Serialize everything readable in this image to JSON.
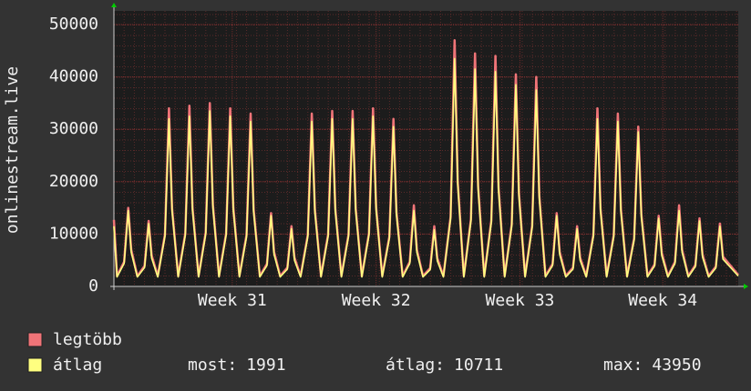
{
  "chart_data": {
    "type": "line",
    "y_label": "onlinestream.live",
    "xlim": [
      0,
      30.6
    ],
    "xticks": [
      {
        "value": 5.8,
        "label": "Week 31"
      },
      {
        "value": 12.85,
        "label": "Week 32"
      },
      {
        "value": 19.9,
        "label": "Week 33"
      },
      {
        "value": 26.9,
        "label": "Week 34"
      }
    ],
    "ylim": [
      0,
      52600
    ],
    "yticks": [
      0,
      10000,
      20000,
      30000,
      40000,
      50000
    ],
    "grid": true,
    "x": [
      0,
      0.15,
      0.5,
      0.7,
      0.85,
      1.15,
      1.5,
      1.7,
      1.85,
      2.15,
      2.5,
      2.7,
      2.85,
      3.15,
      3.5,
      3.7,
      3.85,
      4.15,
      4.5,
      4.7,
      4.85,
      5.15,
      5.5,
      5.7,
      5.85,
      6.15,
      6.5,
      6.7,
      6.85,
      7.15,
      7.5,
      7.7,
      7.85,
      8.15,
      8.5,
      8.7,
      8.85,
      9.15,
      9.5,
      9.7,
      9.85,
      10.15,
      10.5,
      10.7,
      10.85,
      11.15,
      11.5,
      11.7,
      11.85,
      12.15,
      12.5,
      12.7,
      12.85,
      13.15,
      13.5,
      13.7,
      13.85,
      14.15,
      14.5,
      14.7,
      14.85,
      15.15,
      15.5,
      15.7,
      15.85,
      16.15,
      16.5,
      16.7,
      16.85,
      17.15,
      17.5,
      17.7,
      17.85,
      18.15,
      18.5,
      18.7,
      18.85,
      19.15,
      19.5,
      19.7,
      19.85,
      20.15,
      20.5,
      20.7,
      20.85,
      21.15,
      21.5,
      21.7,
      21.85,
      22.15,
      22.5,
      22.7,
      22.85,
      23.15,
      23.5,
      23.7,
      23.85,
      24.15,
      24.5,
      24.7,
      24.85,
      25.15,
      25.5,
      25.7,
      25.85,
      26.15,
      26.5,
      26.7,
      26.85,
      27.15,
      27.5,
      27.7,
      27.85,
      28.15,
      28.5,
      28.7,
      28.85,
      29.15,
      29.5,
      29.7,
      29.85,
      30.6
    ],
    "series": [
      {
        "name": "legtöbb",
        "color": "#f07478",
        "values": [
          12700,
          2000,
          4700,
          15000,
          7000,
          2000,
          3900,
          12500,
          5900,
          2000,
          9900,
          34000,
          14900,
          2000,
          10100,
          34500,
          15100,
          2000,
          10300,
          35000,
          15600,
          2000,
          10100,
          34000,
          15100,
          2000,
          9800,
          33000,
          14700,
          2000,
          4300,
          14000,
          6600,
          2000,
          3600,
          11500,
          5500,
          2000,
          9800,
          33000,
          14700,
          2000,
          9900,
          33500,
          14900,
          2000,
          9900,
          33500,
          14900,
          2000,
          10100,
          34000,
          15100,
          2000,
          9500,
          32000,
          14200,
          2000,
          4700,
          15500,
          7000,
          2000,
          3500,
          11500,
          5400,
          2000,
          13300,
          47000,
          20100,
          2000,
          12800,
          44500,
          19200,
          2000,
          12600,
          44000,
          19000,
          2000,
          11900,
          40500,
          17800,
          2000,
          11600,
          40000,
          17400,
          2000,
          4300,
          14000,
          6600,
          2000,
          3600,
          11500,
          5500,
          2000,
          9900,
          34000,
          14900,
          2000,
          9800,
          33000,
          14700,
          2000,
          9200,
          30500,
          13800,
          2000,
          4200,
          13500,
          6400,
          2000,
          4700,
          15500,
          7000,
          2000,
          4100,
          13000,
          6100,
          2000,
          3800,
          12000,
          5700,
          2200
        ]
      },
      {
        "name": "átlag",
        "color": "#ffff80",
        "values": [
          11500,
          1800,
          4400,
          14500,
          6500,
          1800,
          3600,
          12000,
          5400,
          1800,
          9600,
          32000,
          14400,
          1800,
          9800,
          32500,
          14600,
          1800,
          10000,
          33500,
          15100,
          1800,
          9800,
          32500,
          14600,
          1800,
          9500,
          31500,
          14200,
          1800,
          4000,
          13500,
          6100,
          1800,
          3300,
          11000,
          5000,
          1800,
          9500,
          31500,
          14200,
          1800,
          9600,
          32000,
          14400,
          1800,
          9600,
          32000,
          14400,
          1800,
          9800,
          32500,
          14600,
          1800,
          9200,
          30500,
          13700,
          1800,
          4400,
          14500,
          6500,
          1800,
          3200,
          10800,
          4900,
          1800,
          13000,
          43500,
          19600,
          1800,
          12500,
          41500,
          18700,
          1800,
          12300,
          41000,
          18500,
          1800,
          11600,
          38500,
          17300,
          1800,
          11300,
          37500,
          16900,
          1800,
          4000,
          13500,
          6100,
          1800,
          3300,
          11000,
          5000,
          1800,
          9600,
          32000,
          14400,
          1800,
          9500,
          31500,
          14200,
          1800,
          8900,
          29500,
          13300,
          1800,
          3900,
          13000,
          5900,
          1800,
          4400,
          14500,
          6500,
          1800,
          3800,
          12500,
          5600,
          1800,
          3500,
          11500,
          5200,
          1991
        ]
      }
    ],
    "stats": [
      {
        "label": "most:",
        "value": 1991
      },
      {
        "label": "átlag:",
        "value": 10711
      },
      {
        "label": "max:",
        "value": 43950
      }
    ]
  }
}
